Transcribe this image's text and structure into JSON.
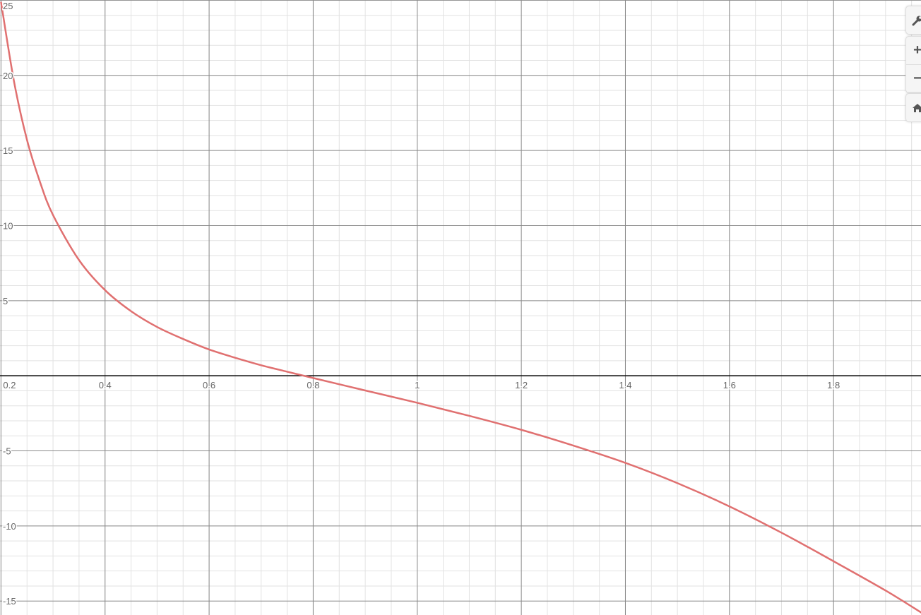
{
  "chart_data": {
    "type": "line",
    "title": "",
    "xlabel": "",
    "ylabel": "",
    "xlim": [
      0.2,
      1.97
    ],
    "ylim": [
      -15.93,
      25.02
    ],
    "grid": true,
    "x_ticks": [
      "0.2",
      "0.4",
      "0.6",
      "0.8",
      "1",
      "1.2",
      "1.4",
      "1.6",
      "1.8"
    ],
    "y_ticks": [
      "25",
      "20",
      "15",
      "10",
      "5",
      "-5",
      "-10",
      "-15"
    ],
    "x_tick_values": [
      0.2,
      0.4,
      0.6,
      0.8,
      1,
      1.2,
      1.4,
      1.6,
      1.8
    ],
    "y_tick_values": [
      25,
      20,
      15,
      10,
      5,
      -5,
      -10,
      -15
    ],
    "series": [
      {
        "color": "#e07070",
        "x": [
          0.2,
          0.225,
          0.25,
          0.275,
          0.3,
          0.35,
          0.4,
          0.45,
          0.5,
          0.55,
          0.6,
          0.65,
          0.7,
          0.75,
          0.8,
          0.9,
          1.0,
          1.1,
          1.2,
          1.3,
          1.4,
          1.5,
          1.6,
          1.7,
          1.8,
          1.9,
          1.97
        ],
        "y": [
          24.9,
          19.6,
          15.7,
          12.9,
          10.7,
          7.7,
          5.7,
          4.3,
          3.25,
          2.45,
          1.75,
          1.2,
          0.7,
          0.27,
          -0.15,
          -0.98,
          -1.8,
          -2.67,
          -3.6,
          -4.65,
          -5.8,
          -7.15,
          -8.7,
          -10.45,
          -12.35,
          -14.3,
          -15.8
        ]
      }
    ]
  },
  "controls": {
    "settings_icon": "wrench-icon",
    "zoom_in": "+",
    "zoom_out": "−",
    "home_icon": "home-icon"
  }
}
